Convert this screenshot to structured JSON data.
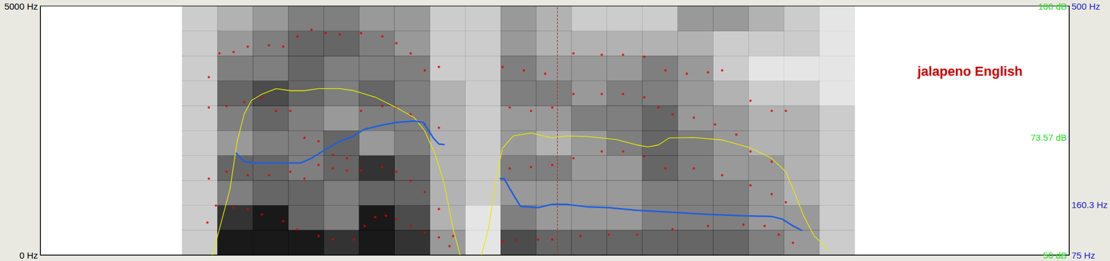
{
  "chart_data": {
    "type": "spectrogram",
    "annotation": "jalapeno English",
    "xlim": [
      0,
      1.453
    ],
    "tick_labels": "y",
    "grid": false,
    "ylim": [
      0,
      5000
    ],
    "yticks": [
      {
        "value": 0,
        "label": "0 Hz"
      },
      {
        "value": 5000,
        "label": "5000 Hz"
      }
    ],
    "y2lim": [
      50,
      100
    ],
    "y2ticks": [
      {
        "value": 50,
        "label": "50 dB"
      },
      {
        "value": 73.57,
        "label": "73.57 dB"
      },
      {
        "value": 100,
        "label": "100 dB"
      }
    ],
    "y3lim": [
      75,
      500
    ],
    "y3ticks": [
      {
        "value": 75,
        "label": "75 Hz"
      },
      {
        "value": 160.3,
        "label": "160.3 Hz"
      },
      {
        "value": 500,
        "label": "500 Hz"
      }
    ],
    "cursor": 0.726,
    "spectrogram": {
      "color": "#000000",
      "range": [
        0,
        10
      ],
      "time_bins": [
        0.2,
        0.25,
        0.3,
        0.35,
        0.4,
        0.45,
        0.5,
        0.55,
        0.6,
        0.65,
        0.7,
        0.75,
        0.8,
        0.85,
        0.9,
        0.95,
        1.0,
        1.05,
        1.1,
        1.15,
        1.2
      ],
      "freq_bins": [
        0,
        500,
        1000,
        1500,
        2000,
        2500,
        3000,
        3500,
        4000,
        4500,
        5000
      ],
      "values": [
        [
          2,
          2,
          2,
          2,
          2,
          2,
          2,
          2,
          2,
          2
        ],
        [
          9,
          8,
          5,
          6,
          4,
          5,
          6,
          5,
          4,
          3
        ],
        [
          9,
          9,
          6,
          6,
          5,
          6,
          7,
          5,
          5,
          4
        ],
        [
          9,
          6,
          6,
          5,
          5,
          5,
          6,
          6,
          6,
          5
        ],
        [
          8,
          5,
          5,
          6,
          6,
          4,
          5,
          5,
          6,
          5
        ],
        [
          9,
          9,
          6,
          8,
          4,
          5,
          6,
          5,
          5,
          4
        ],
        [
          8,
          7,
          6,
          6,
          5,
          5,
          5,
          5,
          4,
          4
        ],
        [
          4,
          3,
          3,
          3,
          3,
          3,
          3,
          2,
          2,
          2
        ],
        [
          1,
          1,
          2,
          2,
          2,
          2,
          2,
          2,
          2,
          2
        ],
        [
          7,
          5,
          4,
          5,
          4,
          4,
          5,
          5,
          4,
          4
        ],
        [
          6,
          4,
          4,
          5,
          3,
          4,
          5,
          4,
          3,
          3
        ],
        [
          6,
          4,
          4,
          4,
          4,
          5,
          4,
          4,
          3,
          2
        ],
        [
          6,
          4,
          4,
          4,
          5,
          5,
          5,
          4,
          3,
          2
        ],
        [
          6,
          5,
          5,
          6,
          6,
          6,
          5,
          5,
          3,
          2
        ],
        [
          6,
          5,
          5,
          5,
          5,
          4,
          4,
          4,
          3,
          4
        ],
        [
          6,
          5,
          5,
          4,
          4,
          4,
          3,
          2,
          2,
          4
        ],
        [
          5,
          4,
          4,
          4,
          3,
          3,
          2,
          1,
          2,
          3
        ],
        [
          4,
          4,
          3,
          3,
          3,
          3,
          2,
          1,
          2,
          2
        ],
        [
          2,
          2,
          2,
          2,
          2,
          2,
          1,
          1,
          1,
          1
        ],
        [
          0,
          0,
          0,
          0,
          0,
          0,
          0,
          0,
          0,
          0
        ]
      ]
    },
    "series": [
      {
        "type": "scatter",
        "color": "#e00000",
        "axis": "y",
        "marker": "circle",
        "x": [
          0.236,
          0.248,
          0.273,
          0.293,
          0.313,
          0.343,
          0.363,
          0.393,
          0.413,
          0.443,
          0.458,
          0.473,
          0.488,
          0.503,
          0.523,
          0.543,
          0.563,
          0.578,
          0.653,
          0.673,
          0.703,
          0.723,
          0.763,
          0.803,
          0.843,
          0.893,
          0.943,
          0.993,
          1.023,
          1.043,
          1.063
        ],
        "values": [
          652,
          992,
          951,
          924,
          815,
          679,
          516,
          380,
          312,
          312,
          584,
          761,
          788,
          720,
          584,
          448,
          353,
          177,
          272,
          299,
          312,
          312,
          380,
          408,
          408,
          516,
          584,
          611,
          584,
          408,
          245
        ]
      },
      {
        "type": "scatter",
        "color": "#e00000",
        "axis": "y",
        "marker": "circle",
        "x": [
          0.238,
          0.263,
          0.293,
          0.323,
          0.353,
          0.373,
          0.393,
          0.413,
          0.433,
          0.453,
          0.483,
          0.503,
          0.523,
          0.543,
          0.563,
          0.583,
          0.663,
          0.693,
          0.723,
          0.753,
          0.793,
          0.823,
          0.853,
          0.883,
          0.923,
          0.963,
          1.003,
          1.033,
          1.053
        ],
        "values": [
          1535,
          1671,
          1603,
          1603,
          1671,
          1535,
          1807,
          1739,
          1698,
          1698,
          1766,
          1671,
          1495,
          1264,
          924,
          380,
          1739,
          1766,
          1807,
          1943,
          2079,
          2079,
          1984,
          1739,
          1739,
          1603,
          1399,
          1223,
          1060
        ]
      },
      {
        "type": "scatter",
        "color": "#e00000",
        "axis": "y",
        "marker": "circle",
        "x": [
          0.238,
          0.263,
          0.288,
          0.313,
          0.333,
          0.353,
          0.373,
          0.393,
          0.413,
          0.433,
          0.453,
          0.483,
          0.503,
          0.523,
          0.543,
          0.563,
          0.663,
          0.693,
          0.723,
          0.753,
          0.793,
          0.823,
          0.853,
          0.873,
          0.893,
          0.923,
          0.953,
          0.983,
          1.003,
          1.033
        ],
        "values": [
          2962,
          2989,
          3071,
          3166,
          2894,
          2894,
          2351,
          2283,
          2011,
          1943,
          2894,
          2989,
          2962,
          2826,
          2622,
          2554,
          2962,
          2894,
          2962,
          3234,
          3234,
          3234,
          3166,
          2962,
          2826,
          2758,
          2622,
          2418,
          2079,
          1875
        ]
      },
      {
        "type": "scatter",
        "color": "#e00000",
        "axis": "y",
        "marker": "circle",
        "x": [
          0.238,
          0.253,
          0.273,
          0.293,
          0.323,
          0.343,
          0.363,
          0.383,
          0.403,
          0.423,
          0.453,
          0.483,
          0.503,
          0.523,
          0.543,
          0.563,
          0.653,
          0.683,
          0.713,
          0.753,
          0.793,
          0.823,
          0.853,
          0.883,
          0.913,
          0.943,
          0.963,
          1.003,
          1.033,
          1.053
        ],
        "values": [
          3573,
          4049,
          4076,
          4185,
          4212,
          4185,
          4389,
          4524,
          4457,
          4429,
          4457,
          4389,
          4253,
          4049,
          3709,
          3777,
          3777,
          3709,
          3641,
          4049,
          4022,
          4022,
          3981,
          3709,
          3641,
          3668,
          3709,
          3098,
          2894,
          2894
        ]
      },
      {
        "type": "line",
        "color": "#e8e800",
        "axis": "y2",
        "line_style": "solid",
        "x": [
          0.243,
          0.253,
          0.268,
          0.278,
          0.288,
          0.298,
          0.313,
          0.333,
          0.353,
          0.373,
          0.393,
          0.423,
          0.443,
          0.473,
          0.503,
          0.528,
          0.543,
          0.558,
          0.571,
          0.583,
          0.593,
          0.608,
          0.623,
          0.633,
          0.643,
          0.653,
          0.668,
          0.693,
          0.723,
          0.743,
          0.773,
          0.813,
          0.843,
          0.858,
          0.873,
          0.888,
          0.923,
          0.963,
          1.003,
          1.033,
          1.053,
          1.063,
          1.078,
          1.093,
          1.113
        ],
        "values": [
          50.0,
          55.2,
          63.3,
          72.8,
          78.3,
          81.0,
          82.3,
          83.4,
          83.0,
          83.0,
          83.4,
          83.4,
          83.0,
          81.7,
          79.6,
          77.6,
          74.9,
          70.1,
          64.0,
          55.2,
          50.0,
          null,
          50.0,
          55.2,
          64.7,
          71.5,
          73.9,
          74.5,
          73.5,
          73.9,
          73.8,
          73.2,
          72.1,
          71.7,
          72.1,
          73.5,
          73.6,
          73.1,
          71.5,
          69.4,
          66.7,
          63.3,
          57.9,
          53.8,
          51.1
        ]
      },
      {
        "type": "line",
        "color": "#1f5fe0",
        "axis": "y3",
        "line_style": "solid",
        "x": [
          0.276,
          0.288,
          0.303,
          0.343,
          0.368,
          0.383,
          0.403,
          0.423,
          0.443,
          0.458,
          0.483,
          0.503,
          0.528,
          0.541,
          0.548,
          0.555,
          0.563,
          0.571,
          0.61,
          0.649,
          0.655,
          0.663,
          0.678,
          0.703,
          0.723,
          0.743,
          0.773,
          0.803,
          0.843,
          0.893,
          0.943,
          0.993,
          1.033,
          1.048,
          1.063,
          1.076
        ],
        "values": [
          249.4,
          234.4,
          232.1,
          232.1,
          232.1,
          240.2,
          255.2,
          269.0,
          278.3,
          289.8,
          296.7,
          301.4,
          303.7,
          301.4,
          288.7,
          274.8,
          264.4,
          263.3,
          null,
          205.5,
          205.5,
          188.2,
          158.2,
          155.8,
          161.6,
          161.6,
          157.0,
          155.8,
          151.2,
          147.8,
          144.3,
          142.0,
          140.8,
          136.2,
          124.7,
          116.6
        ]
      }
    ]
  }
}
